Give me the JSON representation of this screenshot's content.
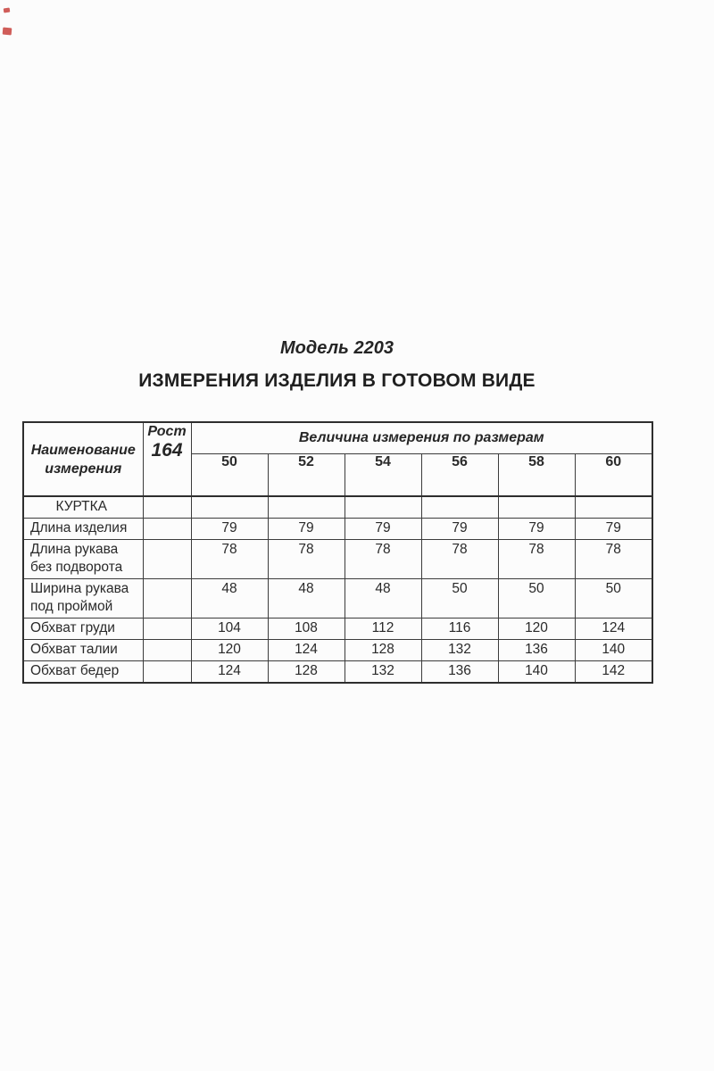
{
  "page": {
    "background": "#fcfcfc",
    "text_color": "#2a2a2a",
    "border_color": "#3c3c3c",
    "artifact_color": "#c43430"
  },
  "titles": {
    "model": "Модель 2203",
    "heading": "ИЗМЕРЕНИЯ ИЗДЕЛИЯ В ГОТОВОМ ВИДЕ"
  },
  "table": {
    "name_header": "Наименование измерения",
    "height_label": "Рост",
    "height_value": "164",
    "sizes_group_header": "Величина измерения по размерам",
    "sizes": [
      "50",
      "52",
      "54",
      "56",
      "58",
      "60"
    ],
    "rows": [
      {
        "label": "КУРТКА",
        "section": true,
        "values": [
          "",
          "",
          "",
          "",
          "",
          ""
        ]
      },
      {
        "label": "Длина изделия",
        "section": false,
        "values": [
          "79",
          "79",
          "79",
          "79",
          "79",
          "79"
        ]
      },
      {
        "label": "Длина рукава без подворота",
        "section": false,
        "values": [
          "78",
          "78",
          "78",
          "78",
          "78",
          "78"
        ]
      },
      {
        "label": "Ширина рукава под проймой",
        "section": false,
        "values": [
          "48",
          "48",
          "48",
          "50",
          "50",
          "50"
        ]
      },
      {
        "label": "Обхват груди",
        "section": false,
        "values": [
          "104",
          "108",
          "112",
          "116",
          "120",
          "124"
        ]
      },
      {
        "label": "Обхват талии",
        "section": false,
        "values": [
          "120",
          "124",
          "128",
          "132",
          "136",
          "140"
        ]
      },
      {
        "label": "Обхват бедер",
        "section": false,
        "values": [
          "124",
          "128",
          "132",
          "136",
          "140",
          "142"
        ]
      }
    ]
  }
}
